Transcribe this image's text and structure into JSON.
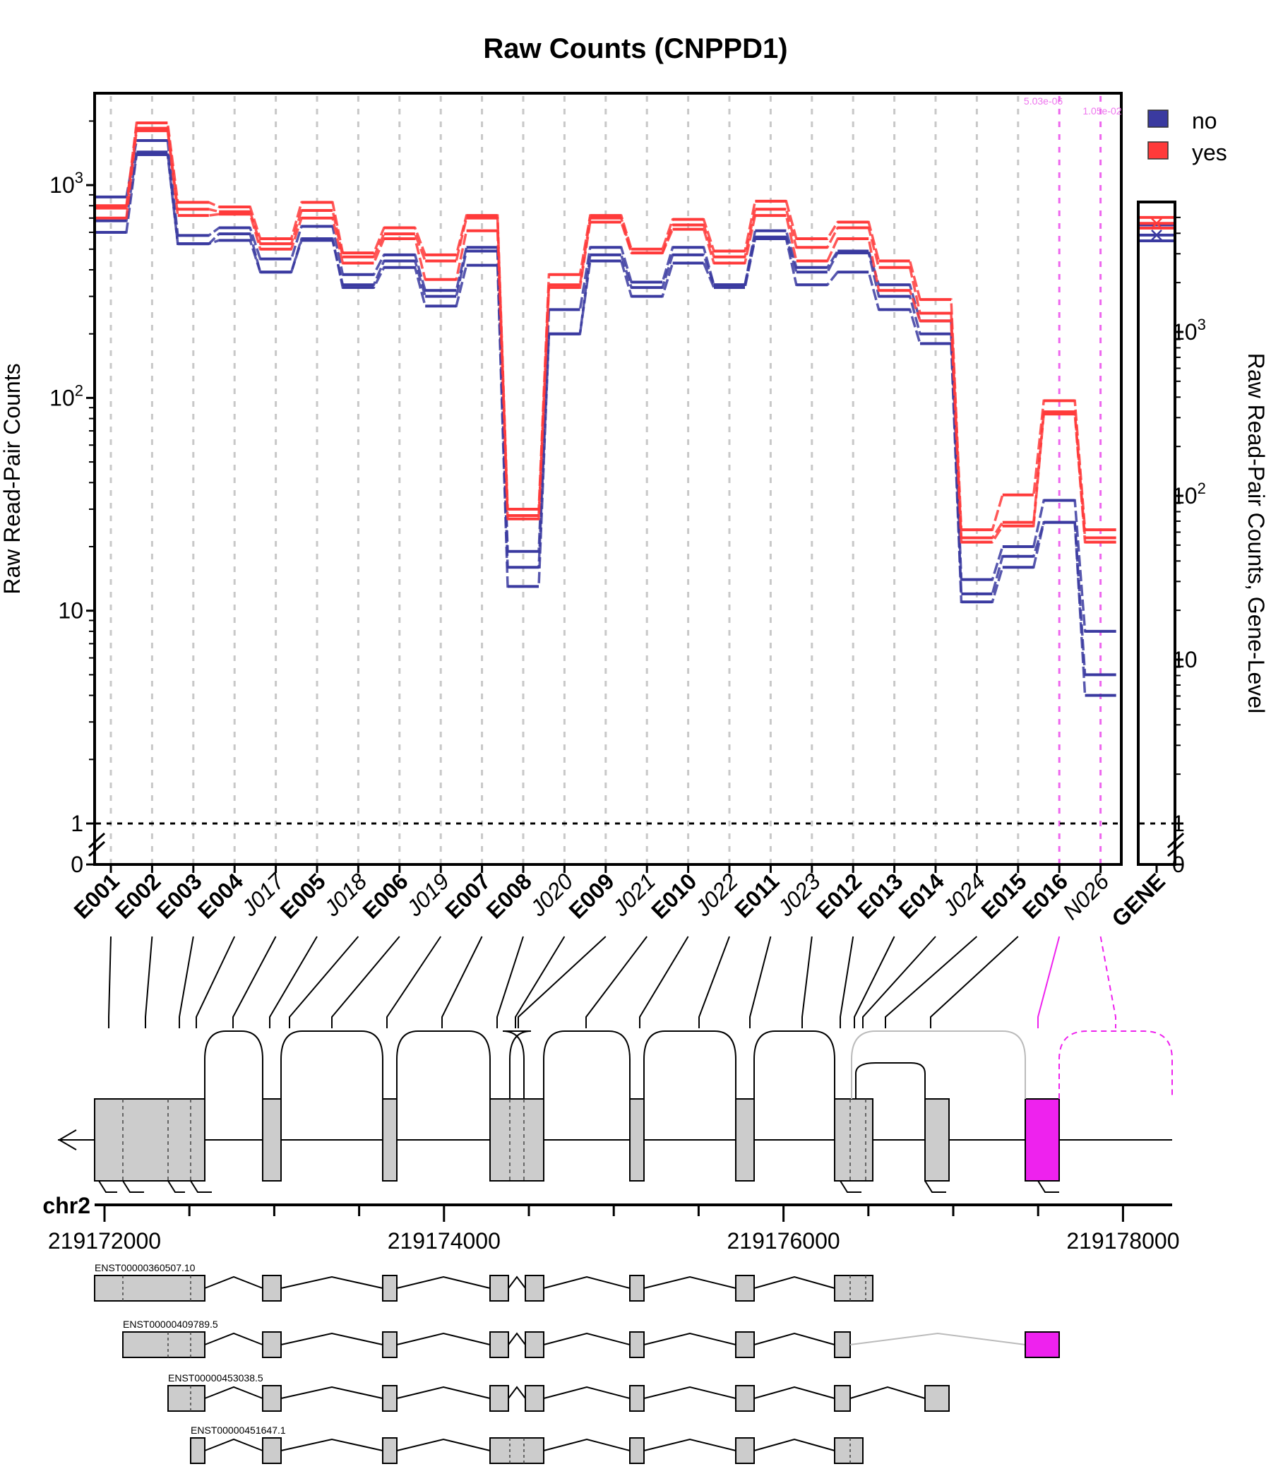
{
  "chart_data": {
    "type": "line",
    "title": "Raw Counts (CNPPD1)",
    "ylabel": "Raw Read-Pair Counts",
    "ylabel_right": "Raw Read-Pair Counts, Gene-Level",
    "y_scale": "log",
    "ylim": [
      0,
      2600
    ],
    "y_ticks": [
      {
        "value": 0,
        "label": "0"
      },
      {
        "value": 1,
        "label": "1"
      },
      {
        "value": 10,
        "label": "10"
      },
      {
        "value": 100,
        "label": "10",
        "sup": "2"
      },
      {
        "value": 1000,
        "label": "10",
        "sup": "3"
      }
    ],
    "y_ticks_right": [
      {
        "value": 0,
        "label": "0"
      },
      {
        "value": 1,
        "label": "1"
      },
      {
        "value": 10,
        "label": "10"
      },
      {
        "value": 100,
        "label": "10",
        "sup": "2"
      },
      {
        "value": 1000,
        "label": "10",
        "sup": "3"
      }
    ],
    "features": [
      {
        "name": "E001",
        "kind": "exon"
      },
      {
        "name": "E002",
        "kind": "exon"
      },
      {
        "name": "E003",
        "kind": "exon"
      },
      {
        "name": "E004",
        "kind": "exon"
      },
      {
        "name": "J017",
        "kind": "junction"
      },
      {
        "name": "E005",
        "kind": "exon"
      },
      {
        "name": "J018",
        "kind": "junction"
      },
      {
        "name": "E006",
        "kind": "exon"
      },
      {
        "name": "J019",
        "kind": "junction"
      },
      {
        "name": "E007",
        "kind": "exon"
      },
      {
        "name": "E008",
        "kind": "exon"
      },
      {
        "name": "J020",
        "kind": "junction"
      },
      {
        "name": "E009",
        "kind": "exon"
      },
      {
        "name": "J021",
        "kind": "junction"
      },
      {
        "name": "E010",
        "kind": "exon"
      },
      {
        "name": "J022",
        "kind": "junction"
      },
      {
        "name": "E011",
        "kind": "exon"
      },
      {
        "name": "J023",
        "kind": "junction"
      },
      {
        "name": "E012",
        "kind": "exon"
      },
      {
        "name": "E013",
        "kind": "exon"
      },
      {
        "name": "E014",
        "kind": "exon"
      },
      {
        "name": "J024",
        "kind": "junction"
      },
      {
        "name": "E015",
        "kind": "exon"
      },
      {
        "name": "E016",
        "kind": "exon",
        "highlight": true
      },
      {
        "name": "N026",
        "kind": "novel",
        "highlight": true
      }
    ],
    "gene_label": "GENE",
    "legend": [
      {
        "name": "no",
        "color": "#3a3aa0"
      },
      {
        "name": "yes",
        "color": "#ff3a3a"
      }
    ],
    "legend_position": "top-right",
    "annotations": [
      "5.03e-06",
      "1.05e-02"
    ],
    "series": [
      {
        "name": "no",
        "color": "#3a3aa0",
        "samples": [
          [
            880,
            1620,
            580,
            630,
            450,
            640,
            380,
            470,
            320,
            510,
            19,
            260,
            510,
            350,
            510,
            340,
            610,
            410,
            490,
            340,
            230,
            14,
            20,
            33,
            8
          ],
          [
            680,
            1430,
            530,
            590,
            390,
            550,
            340,
            440,
            300,
            490,
            16,
            200,
            470,
            330,
            470,
            340,
            570,
            390,
            480,
            300,
            200,
            12,
            18,
            26,
            5
          ],
          [
            600,
            1390,
            530,
            550,
            390,
            560,
            330,
            410,
            270,
            420,
            13,
            200,
            440,
            300,
            430,
            330,
            560,
            340,
            390,
            260,
            180,
            11,
            16,
            26,
            4
          ]
        ],
        "gene": [
          4500,
          3900,
          3600
        ]
      },
      {
        "name": "yes",
        "color": "#ff3a3a",
        "samples": [
          [
            800,
            1960,
            830,
            790,
            560,
            830,
            480,
            630,
            470,
            720,
            30,
            380,
            720,
            500,
            690,
            490,
            840,
            560,
            670,
            440,
            290,
            24,
            35,
            97,
            24
          ],
          [
            780,
            1850,
            770,
            750,
            530,
            760,
            460,
            590,
            440,
            700,
            28,
            340,
            700,
            480,
            650,
            460,
            770,
            510,
            630,
            410,
            250,
            22,
            26,
            86,
            22
          ],
          [
            700,
            1800,
            720,
            730,
            500,
            700,
            430,
            560,
            360,
            610,
            27,
            330,
            670,
            480,
            620,
            430,
            720,
            440,
            560,
            320,
            230,
            21,
            25,
            84,
            21
          ]
        ],
        "gene": [
          5000,
          4600,
          4300
        ]
      }
    ],
    "coordinate_axis": {
      "chromosome": "chr2",
      "ticks": [
        219172000,
        219174000,
        219176000,
        219178000
      ],
      "range": [
        219171900,
        219178700
      ]
    },
    "transcripts": [
      {
        "name": "ENST00000360507.10"
      },
      {
        "name": "ENST00000409789.5"
      },
      {
        "name": "ENST00000453038.5"
      },
      {
        "name": "ENST00000451647.1"
      }
    ],
    "grid": true
  }
}
